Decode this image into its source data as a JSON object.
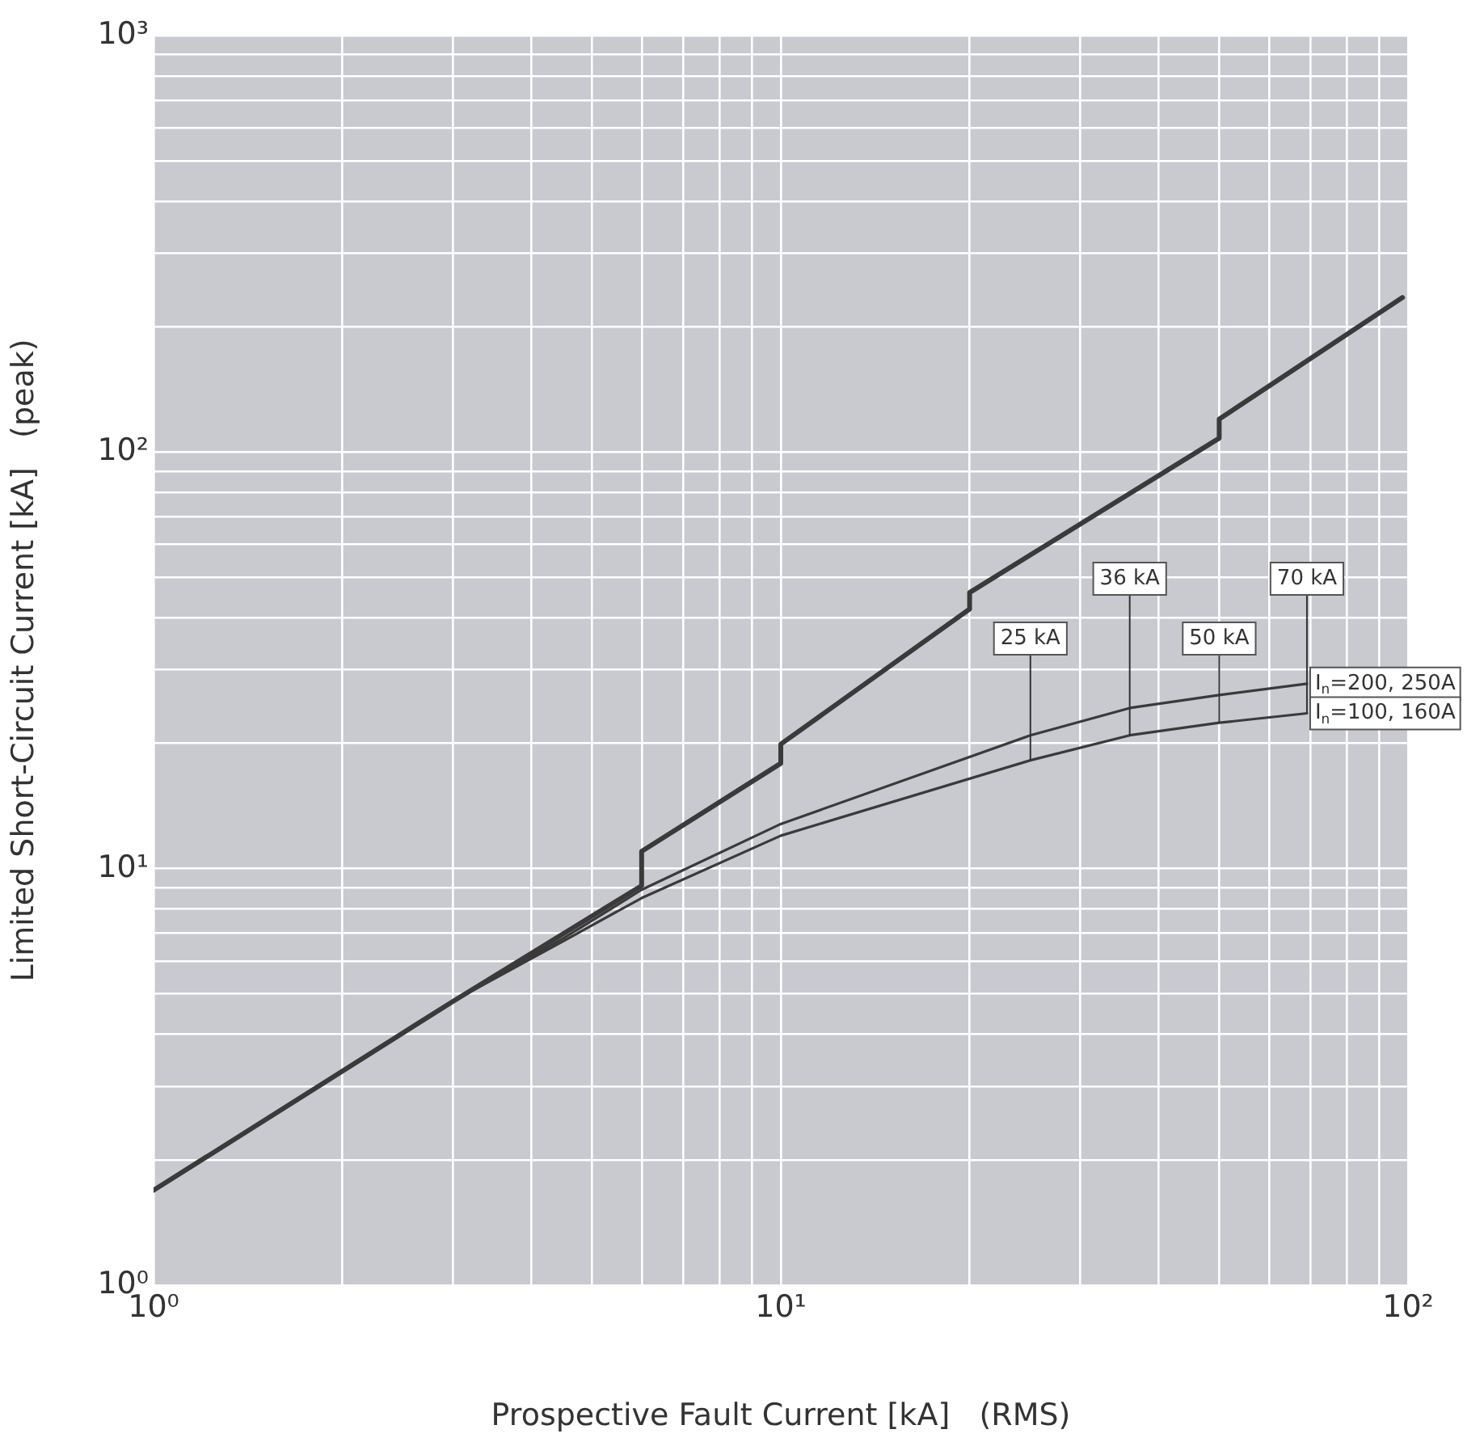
{
  "chart_data": {
    "type": "line",
    "xlabel": "Prospective Fault Current [kA]   (RMS)",
    "ylabel": "Limited Short-Circuit Current [kA]   (peak)",
    "log": "xy",
    "grid": true,
    "legend": false,
    "marker": "none",
    "line_style": "solid",
    "xlim": [
      1,
      100
    ],
    "ylim": [
      1,
      1000
    ],
    "xticks": [
      {
        "value": 1,
        "label": "10⁰"
      },
      {
        "value": 2,
        "label": null
      },
      {
        "value": 3,
        "label": null
      },
      {
        "value": 4,
        "label": null
      },
      {
        "value": 5,
        "label": null
      },
      {
        "value": 6,
        "label": null
      },
      {
        "value": 7,
        "label": null
      },
      {
        "value": 8,
        "label": null
      },
      {
        "value": 9,
        "label": null
      },
      {
        "value": 10,
        "label": "10¹"
      },
      {
        "value": 20,
        "label": null
      },
      {
        "value": 30,
        "label": null
      },
      {
        "value": 40,
        "label": null
      },
      {
        "value": 50,
        "label": null
      },
      {
        "value": 60,
        "label": null
      },
      {
        "value": 70,
        "label": null
      },
      {
        "value": 80,
        "label": null
      },
      {
        "value": 90,
        "label": null
      },
      {
        "value": 100,
        "label": "10²"
      }
    ],
    "yticks": [
      {
        "value": 1,
        "label": "10⁰"
      },
      {
        "value": 2,
        "label": null
      },
      {
        "value": 3,
        "label": null
      },
      {
        "value": 4,
        "label": null
      },
      {
        "value": 5,
        "label": null
      },
      {
        "value": 6,
        "label": null
      },
      {
        "value": 7,
        "label": null
      },
      {
        "value": 8,
        "label": null
      },
      {
        "value": 9,
        "label": null
      },
      {
        "value": 10,
        "label": "10¹"
      },
      {
        "value": 20,
        "label": null
      },
      {
        "value": 30,
        "label": null
      },
      {
        "value": 40,
        "label": null
      },
      {
        "value": 50,
        "label": null
      },
      {
        "value": 60,
        "label": null
      },
      {
        "value": 70,
        "label": null
      },
      {
        "value": 80,
        "label": null
      },
      {
        "value": 90,
        "label": null
      },
      {
        "value": 100,
        "label": "10²"
      },
      {
        "value": 200,
        "label": null
      },
      {
        "value": 300,
        "label": null
      },
      {
        "value": 400,
        "label": null
      },
      {
        "value": 500,
        "label": null
      },
      {
        "value": 600,
        "label": null
      },
      {
        "value": 700,
        "label": null
      },
      {
        "value": 800,
        "label": null
      },
      {
        "value": 900,
        "label": null
      },
      {
        "value": 1000,
        "label": "10³"
      }
    ],
    "series": [
      {
        "color": "#3a3a3a",
        "x": [
          1,
          3,
          6,
          6,
          10,
          10,
          20,
          20,
          50,
          50,
          98
        ],
        "values": [
          1.69,
          4.8,
          9.1,
          11,
          17.9,
          19.9,
          42,
          46,
          108,
          120,
          235
        ]
      },
      {
        "name": "I$_{n}$=200, 250A",
        "color": "#3a3a3a",
        "x": [
          1,
          3,
          4.5,
          6,
          10,
          25,
          36,
          50,
          69
        ],
        "values": [
          1.69,
          4.8,
          6.8,
          8.9,
          12.8,
          20.9,
          24.3,
          26.1,
          27.8
        ]
      },
      {
        "name": "I$_{n}$=100, 160A",
        "color": "#3a3a3a",
        "x": [
          1,
          3,
          4.5,
          6,
          10,
          25,
          36,
          50,
          69
        ],
        "values": [
          1.69,
          4.8,
          6.7,
          8.5,
          12,
          18.2,
          20.9,
          22.4,
          23.6
        ]
      }
    ],
    "annotations": [
      {
        "text": "25 kA",
        "x": 25,
        "y": 18.2
      },
      {
        "text": "36 kA",
        "x": 36,
        "y": 20.9
      },
      {
        "text": "50 kA",
        "x": 50,
        "y": 22.4
      },
      {
        "text": "70 kA",
        "x": 69,
        "y": 23.6
      }
    ]
  }
}
